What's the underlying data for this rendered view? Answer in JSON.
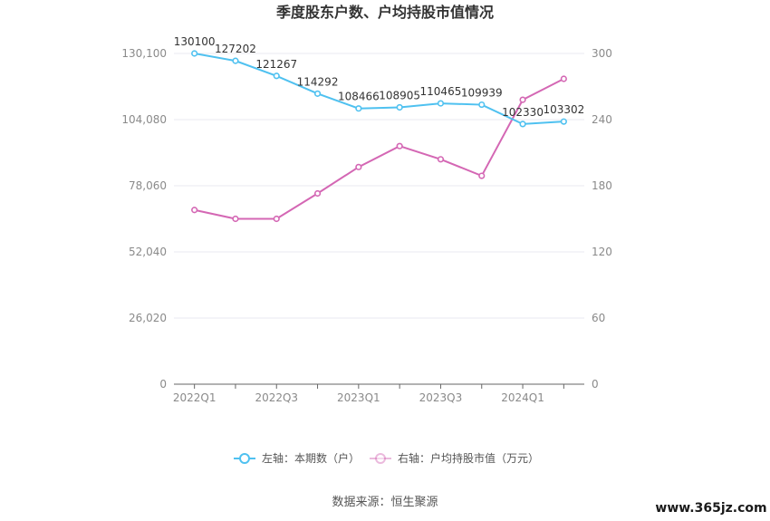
{
  "title": "季度股东户数、户均持股市值情况",
  "source_note": "数据来源：恒生聚源",
  "watermark": "www.365jz.com",
  "colors": {
    "left_series": "#4fc1f0",
    "right_series": "#d467b4",
    "grid": "#e8e8f0",
    "axis": "#666666"
  },
  "chart_data": {
    "type": "line",
    "categories": [
      "2022Q1",
      "2022Q2",
      "2022Q3",
      "2022Q4",
      "2023Q1",
      "2023Q2",
      "2023Q3",
      "2023Q4",
      "2024Q1",
      "2024Q2"
    ],
    "x_tick_labels": [
      "2022Q1",
      "",
      "2022Q3",
      "",
      "2023Q1",
      "",
      "2023Q3",
      "",
      "2024Q1",
      ""
    ],
    "left_axis": {
      "min": 0,
      "max": 130100,
      "ticks": [
        0,
        26020,
        52040,
        78060,
        104080,
        130100
      ],
      "tick_labels": [
        "0",
        "26,020",
        "52,040",
        "78,060",
        "104,080",
        "130,100"
      ]
    },
    "right_axis": {
      "min": 0,
      "max": 300,
      "ticks": [
        0,
        60,
        120,
        180,
        240,
        300
      ],
      "tick_labels": [
        "0",
        "60",
        "120",
        "180",
        "240",
        "300"
      ]
    },
    "series": [
      {
        "name": "左轴：本期数（户）",
        "axis": "left",
        "values": [
          130100,
          127202,
          121267,
          114292,
          108466,
          108905,
          110465,
          109939,
          102330,
          103302
        ],
        "labels": [
          "130100",
          "127202",
          "121267",
          "114292",
          "108466",
          "108905",
          "110465",
          "109939",
          "102330",
          "103302"
        ]
      },
      {
        "name": "右轴：户均持股市值（万元）",
        "axis": "right",
        "values": [
          158,
          150,
          150,
          173,
          197,
          216,
          204,
          189,
          258,
          277
        ]
      }
    ],
    "legend_position": "bottom",
    "grid": true
  }
}
